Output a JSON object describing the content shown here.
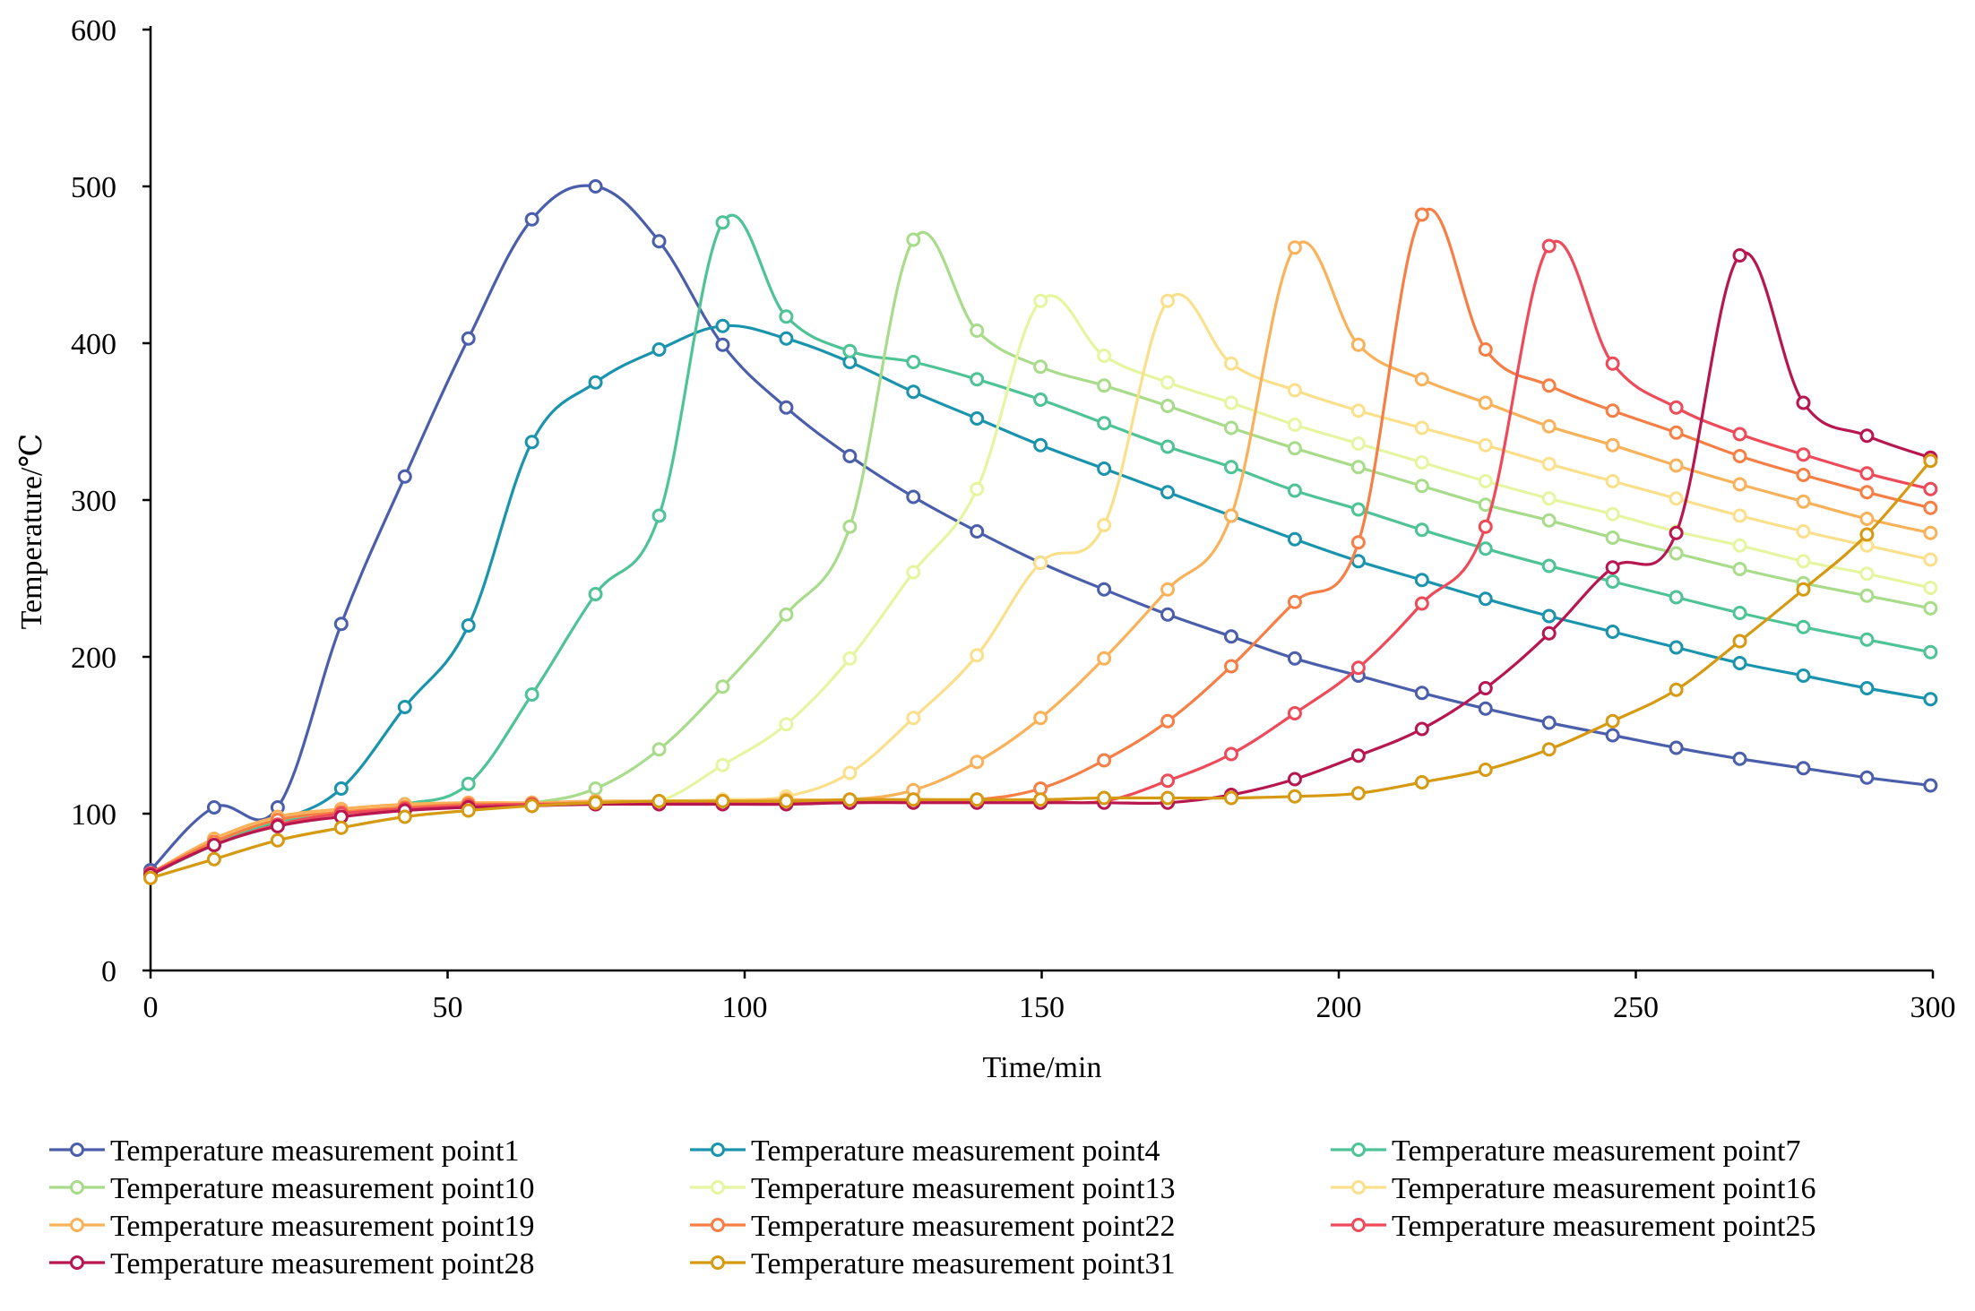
{
  "chart_data": {
    "type": "line",
    "title": "",
    "xlabel": "Time/min",
    "ylabel": "Temperature/℃",
    "xlim": [
      0,
      300
    ],
    "ylim": [
      0,
      600
    ],
    "xticks": [
      0,
      50,
      100,
      150,
      200,
      250,
      300
    ],
    "yticks": [
      0,
      100,
      200,
      300,
      400,
      500,
      600
    ],
    "grid": false,
    "legend_position": "bottom",
    "x": [
      0,
      10.7,
      21.4,
      32.1,
      42.8,
      53.5,
      64.2,
      74.9,
      85.6,
      96.3,
      107,
      117.7,
      128.4,
      139.1,
      149.8,
      160.5,
      171.2,
      181.9,
      192.6,
      203.3,
      214,
      224.7,
      235.4,
      246.1,
      256.8,
      267.5,
      278.2,
      288.9,
      299.6
    ],
    "series": [
      {
        "name": "Temperature measurement point1",
        "color": "#4a5eab",
        "values": [
          64,
          104,
          104,
          221,
          315,
          403,
          479,
          500,
          465,
          399,
          359,
          328,
          302,
          280,
          260,
          243,
          227,
          213,
          199,
          188,
          177,
          167,
          158,
          150,
          142,
          135,
          129,
          123,
          118
        ]
      },
      {
        "name": "Temperature measurement point4",
        "color": "#1a94ad",
        "values": [
          62,
          80,
          95,
          116,
          168,
          220,
          337,
          375,
          396,
          411,
          403,
          388,
          369,
          352,
          335,
          320,
          305,
          290,
          275,
          261,
          249,
          237,
          226,
          216,
          206,
          196,
          188,
          180,
          173
        ]
      },
      {
        "name": "Temperature measurement point7",
        "color": "#4dc396",
        "values": [
          61,
          80,
          95,
          100,
          106,
          119,
          176,
          240,
          290,
          477,
          417,
          395,
          388,
          377,
          364,
          349,
          334,
          321,
          306,
          294,
          281,
          269,
          258,
          248,
          238,
          228,
          219,
          211,
          203
        ]
      },
      {
        "name": "Temperature measurement point10",
        "color": "#a8dc8a",
        "values": [
          61,
          82,
          96,
          101,
          105,
          106,
          107,
          116,
          141,
          181,
          227,
          283,
          466,
          408,
          385,
          373,
          360,
          346,
          333,
          321,
          309,
          297,
          287,
          276,
          266,
          256,
          247,
          239,
          231
        ]
      },
      {
        "name": "Temperature measurement point13",
        "color": "#e6f5a0",
        "values": [
          61,
          82,
          96,
          101,
          105,
          106,
          107,
          107,
          108,
          131,
          157,
          199,
          254,
          307,
          427,
          392,
          375,
          362,
          348,
          336,
          324,
          312,
          301,
          291,
          280,
          271,
          261,
          253,
          244
        ]
      },
      {
        "name": "Temperature measurement point16",
        "color": "#fbe08c",
        "values": [
          62,
          83,
          97,
          102,
          105,
          106,
          107,
          107,
          108,
          109,
          111,
          126,
          161,
          201,
          260,
          284,
          427,
          387,
          370,
          357,
          346,
          335,
          323,
          312,
          301,
          290,
          280,
          271,
          262
        ]
      },
      {
        "name": "Temperature measurement point19",
        "color": "#f9b25a",
        "values": [
          62,
          84,
          98,
          103,
          106,
          107,
          107,
          108,
          108,
          108,
          109,
          109,
          115,
          133,
          161,
          199,
          243,
          290,
          461,
          399,
          377,
          362,
          347,
          335,
          322,
          310,
          299,
          288,
          279
        ]
      },
      {
        "name": "Temperature measurement point22",
        "color": "#f77f45",
        "values": [
          62,
          82,
          96,
          101,
          104,
          106,
          106,
          107,
          107,
          107,
          108,
          108,
          109,
          109,
          116,
          134,
          159,
          194,
          235,
          273,
          482,
          396,
          373,
          357,
          343,
          328,
          316,
          305,
          295
        ]
      },
      {
        "name": "Temperature measurement point25",
        "color": "#ee4a5a",
        "values": [
          62,
          80,
          93,
          100,
          103,
          105,
          106,
          106,
          107,
          107,
          107,
          107,
          108,
          108,
          108,
          108,
          121,
          138,
          164,
          193,
          234,
          283,
          462,
          387,
          359,
          342,
          329,
          317,
          307
        ]
      },
      {
        "name": "Temperature measurement point28",
        "color": "#b7164e",
        "values": [
          61,
          80,
          92,
          98,
          102,
          104,
          105,
          106,
          106,
          106,
          106,
          107,
          107,
          107,
          107,
          107,
          107,
          112,
          122,
          137,
          154,
          180,
          215,
          257,
          279,
          456,
          362,
          341,
          327
        ]
      },
      {
        "name": "Temperature measurement point31",
        "color": "#d59a12",
        "values": [
          59,
          71,
          83,
          91,
          98,
          102,
          105,
          107,
          108,
          108,
          108,
          109,
          109,
          109,
          109,
          110,
          110,
          110,
          111,
          113,
          120,
          128,
          141,
          159,
          179,
          210,
          243,
          278,
          325
        ]
      }
    ]
  }
}
